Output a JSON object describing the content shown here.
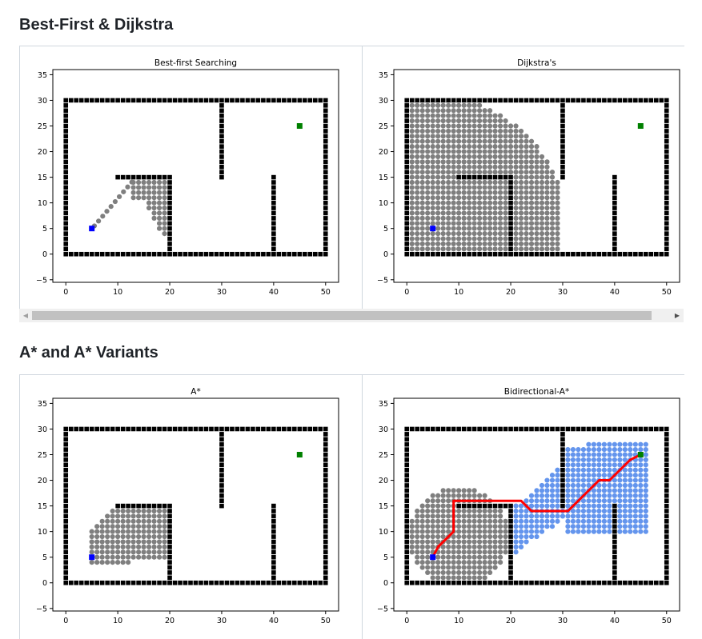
{
  "sections": [
    {
      "heading": "Best-First & Dijkstra"
    },
    {
      "heading": "A* and A* Variants"
    }
  ],
  "scrollbar": {
    "left_arrow": "◀",
    "right_arrow": "▶"
  },
  "chart_data": [
    {
      "type": "scatter",
      "title": "Best-first Searching",
      "xlim": [
        -2.5,
        52.5
      ],
      "ylim": [
        -5.5,
        36
      ],
      "xticks": [
        0,
        10,
        20,
        30,
        40,
        50
      ],
      "yticks": [
        -5,
        0,
        5,
        10,
        15,
        20,
        25,
        30,
        35
      ],
      "start": [
        5,
        5
      ],
      "goal": [
        45,
        25
      ],
      "visited": {
        "mode": "bestfirst"
      },
      "path": []
    },
    {
      "type": "scatter",
      "title": "Dijkstra's",
      "xlim": [
        -2.5,
        52.5
      ],
      "ylim": [
        -5.5,
        36
      ],
      "xticks": [
        0,
        10,
        20,
        30,
        40,
        50
      ],
      "yticks": [
        -5,
        0,
        5,
        10,
        15,
        20,
        25,
        30,
        35
      ],
      "start": [
        5,
        5
      ],
      "goal": [
        45,
        25
      ],
      "visited": {
        "mode": "dijkstra"
      },
      "path": []
    },
    {
      "type": "scatter",
      "title": "A*",
      "xlim": [
        -2.5,
        52.5
      ],
      "ylim": [
        -5.5,
        36
      ],
      "xticks": [
        0,
        10,
        20,
        30,
        40,
        50
      ],
      "yticks": [
        -5,
        0,
        5,
        10,
        15,
        20,
        25,
        30,
        35
      ],
      "start": [
        5,
        5
      ],
      "goal": [
        45,
        25
      ],
      "visited": {
        "mode": "astar"
      },
      "path": []
    },
    {
      "type": "scatter",
      "title": "Bidirectional-A*",
      "xlim": [
        -2.5,
        52.5
      ],
      "ylim": [
        -5.5,
        36
      ],
      "xticks": [
        0,
        10,
        20,
        30,
        40,
        50
      ],
      "yticks": [
        -5,
        0,
        5,
        10,
        15,
        20,
        25,
        30,
        35
      ],
      "start": [
        5,
        5
      ],
      "goal": [
        45,
        25
      ],
      "visited": {
        "mode": "bidirectional"
      },
      "path": [
        [
          5,
          5
        ],
        [
          6,
          7
        ],
        [
          9,
          10
        ],
        [
          9,
          16
        ],
        [
          22,
          16
        ],
        [
          24,
          14
        ],
        [
          31,
          14
        ],
        [
          37,
          20
        ],
        [
          39,
          20
        ],
        [
          43,
          24
        ],
        [
          45,
          25
        ]
      ]
    }
  ],
  "colors": {
    "obstacle": "#000000",
    "visited": "#7f7f7f",
    "visited_backward": "#6495ed",
    "path": "#ff0000",
    "start": "#0000ff",
    "goal": "#008000"
  }
}
